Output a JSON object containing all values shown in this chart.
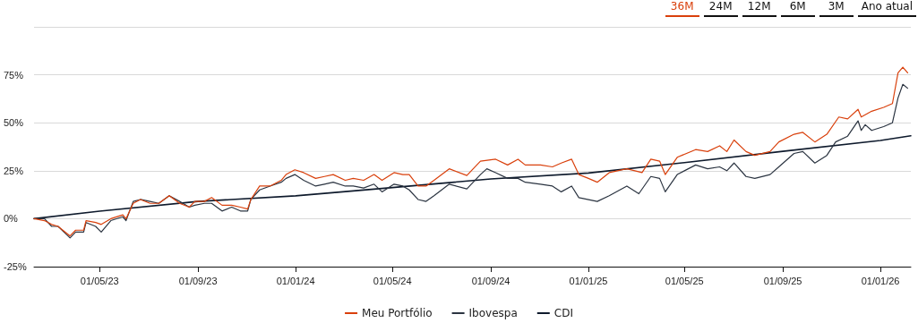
{
  "chart_data": {
    "type": "line",
    "annotations": [
      "36M",
      "24M",
      "12M",
      "6M",
      "3M",
      "Ano atual"
    ],
    "xlim": [
      "2023-02-08",
      "2026-02-08"
    ],
    "xticks": [
      {
        "value": "2023-05-01",
        "label": "01/05/23"
      },
      {
        "value": "2023-09-01",
        "label": "01/09/23"
      },
      {
        "value": "2024-01-01",
        "label": "01/01/24"
      },
      {
        "value": "2024-05-01",
        "label": "01/05/24"
      },
      {
        "value": "2024-09-01",
        "label": "01/09/24"
      },
      {
        "value": "2025-01-01",
        "label": "01/01/25"
      },
      {
        "value": "2025-05-01",
        "label": "01/05/25"
      },
      {
        "value": "2025-09-01",
        "label": "01/09/25"
      },
      {
        "value": "2026-01-01",
        "label": "01/01/26"
      }
    ],
    "ylim": [
      -25,
      100
    ],
    "yticks": [
      {
        "value": -25,
        "label": "-25%"
      },
      {
        "value": 0,
        "label": "0%"
      },
      {
        "value": 25,
        "label": "25%"
      },
      {
        "value": 50,
        "label": "50%"
      },
      {
        "value": 75,
        "label": "75%"
      },
      {
        "value": 100,
        "label": null
      }
    ],
    "grid": "y",
    "legend": "bottom",
    "marker": "none",
    "line_style": "solid",
    "series": [
      {
        "name": "Meu Portfólio",
        "color": "#d9400c",
        "x": [
          "2023-02-08",
          "2023-02-21",
          "2023-03-02",
          "2023-03-10",
          "2023-03-25",
          "2023-04-01",
          "2023-04-11",
          "2023-04-14",
          "2023-04-26",
          "2023-05-03",
          "2023-05-15",
          "2023-05-30",
          "2023-06-03",
          "2023-06-12",
          "2023-06-21",
          "2023-07-03",
          "2023-07-14",
          "2023-07-27",
          "2023-08-09",
          "2023-08-21",
          "2023-08-28",
          "2023-09-09",
          "2023-09-18",
          "2023-10-01",
          "2023-10-13",
          "2023-10-24",
          "2023-11-02",
          "2023-11-06",
          "2023-11-17",
          "2023-11-30",
          "2023-12-14",
          "2023-12-20",
          "2023-12-31",
          "2024-01-11",
          "2024-01-26",
          "2024-02-06",
          "2024-02-17",
          "2024-03-03",
          "2024-03-13",
          "2024-03-26",
          "2024-04-08",
          "2024-04-18",
          "2024-05-03",
          "2024-05-14",
          "2024-05-22",
          "2024-06-02",
          "2024-06-12",
          "2024-06-22",
          "2024-07-11",
          "2024-08-02",
          "2024-08-19",
          "2024-09-07",
          "2024-09-22",
          "2024-10-05",
          "2024-10-14",
          "2024-11-02",
          "2024-11-17",
          "2024-11-28",
          "2024-12-11",
          "2024-12-20",
          "2025-01-01",
          "2025-01-12",
          "2025-01-27",
          "2025-02-18",
          "2025-03-09",
          "2025-03-20",
          "2025-03-31",
          "2025-04-07",
          "2025-04-22",
          "2025-05-15",
          "2025-05-30",
          "2025-06-14",
          "2025-06-23",
          "2025-07-02",
          "2025-07-17",
          "2025-07-28",
          "2025-08-16",
          "2025-08-27",
          "2025-09-15",
          "2025-09-26",
          "2025-10-11",
          "2025-10-26",
          "2025-11-10",
          "2025-11-21",
          "2025-12-04",
          "2025-12-08",
          "2025-12-21",
          "2026-01-05",
          "2026-01-16",
          "2026-01-23",
          "2026-01-29",
          "2026-02-04"
        ],
        "values": [
          0,
          -1,
          -3,
          -4,
          -9,
          -6,
          -6,
          -1,
          -2,
          -3,
          0,
          2,
          0,
          8,
          10,
          8,
          8,
          12,
          8,
          6,
          9,
          9,
          11,
          7,
          7,
          6,
          5,
          10,
          17,
          17,
          20,
          23,
          25.5,
          24,
          21,
          22,
          23,
          20,
          21,
          20,
          23,
          20,
          24,
          23,
          23,
          17,
          17,
          20,
          26,
          22.5,
          30,
          31,
          28,
          31,
          28,
          28,
          27,
          29,
          31,
          23,
          21,
          19,
          24,
          26,
          24,
          31,
          30,
          23,
          32,
          36,
          35,
          38,
          35,
          41,
          35,
          33,
          35,
          40,
          44,
          45,
          40,
          44,
          53,
          52,
          57,
          53,
          56,
          58,
          60,
          76,
          79,
          76
        ]
      },
      {
        "name": "Ibovespa",
        "color": "#2b3441",
        "x": [
          "2023-02-08",
          "2023-02-21",
          "2023-03-02",
          "2023-03-10",
          "2023-03-25",
          "2023-04-01",
          "2023-04-11",
          "2023-04-14",
          "2023-04-26",
          "2023-05-03",
          "2023-05-15",
          "2023-05-30",
          "2023-06-03",
          "2023-06-12",
          "2023-06-21",
          "2023-07-03",
          "2023-07-14",
          "2023-07-27",
          "2023-08-09",
          "2023-08-21",
          "2023-08-28",
          "2023-09-09",
          "2023-09-18",
          "2023-10-01",
          "2023-10-13",
          "2023-10-24",
          "2023-11-02",
          "2023-11-06",
          "2023-11-17",
          "2023-11-30",
          "2023-12-14",
          "2023-12-20",
          "2023-12-31",
          "2024-01-11",
          "2024-01-26",
          "2024-02-06",
          "2024-02-17",
          "2024-03-03",
          "2024-03-13",
          "2024-03-26",
          "2024-04-08",
          "2024-04-18",
          "2024-05-03",
          "2024-05-14",
          "2024-05-22",
          "2024-06-02",
          "2024-06-12",
          "2024-06-22",
          "2024-07-11",
          "2024-08-02",
          "2024-08-19",
          "2024-08-27",
          "2024-09-07",
          "2024-09-22",
          "2024-10-05",
          "2024-10-14",
          "2024-11-02",
          "2024-11-17",
          "2024-11-28",
          "2024-12-11",
          "2024-12-20",
          "2025-01-12",
          "2025-01-27",
          "2025-02-18",
          "2025-03-05",
          "2025-03-20",
          "2025-03-31",
          "2025-04-07",
          "2025-04-22",
          "2025-05-15",
          "2025-05-30",
          "2025-06-14",
          "2025-06-23",
          "2025-07-02",
          "2025-07-17",
          "2025-07-28",
          "2025-08-16",
          "2025-08-27",
          "2025-09-15",
          "2025-09-26",
          "2025-10-11",
          "2025-10-26",
          "2025-11-06",
          "2025-11-21",
          "2025-12-04",
          "2025-12-08",
          "2025-12-13",
          "2025-12-21",
          "2026-01-05",
          "2026-01-16",
          "2026-01-23",
          "2026-01-29",
          "2026-02-04"
        ],
        "values": [
          0,
          0,
          -4,
          -4,
          -10,
          -7,
          -7,
          -2,
          -4,
          -7,
          -1,
          1,
          -1,
          9,
          10,
          9,
          8,
          12,
          9,
          6,
          7,
          8,
          8,
          4,
          6,
          4,
          4,
          10,
          15,
          17,
          19,
          21,
          23,
          20,
          17,
          18,
          19,
          17,
          17,
          16,
          18,
          14,
          18,
          17,
          15,
          10,
          9,
          12,
          18,
          15.5,
          23,
          26,
          24,
          21,
          21,
          19,
          18,
          17,
          14,
          17,
          11,
          9,
          12,
          17,
          13,
          22,
          21,
          14,
          23,
          28,
          26,
          27,
          25,
          29,
          22,
          21,
          23,
          27,
          34,
          35,
          29,
          33,
          40,
          43,
          51,
          46,
          49,
          46,
          48,
          50,
          63,
          70,
          68
        ]
      },
      {
        "name": "CDI",
        "color": "#0e1a2c",
        "x": [
          "2023-02-08",
          "2023-05-01",
          "2023-09-01",
          "2024-01-01",
          "2024-05-01",
          "2024-09-01",
          "2025-01-01",
          "2025-05-01",
          "2025-09-01",
          "2026-01-01",
          "2026-02-08"
        ],
        "values": [
          0,
          3.9,
          9,
          11.9,
          16.2,
          20.7,
          23.8,
          29.2,
          35.1,
          40.8,
          43.2
        ]
      }
    ]
  }
}
